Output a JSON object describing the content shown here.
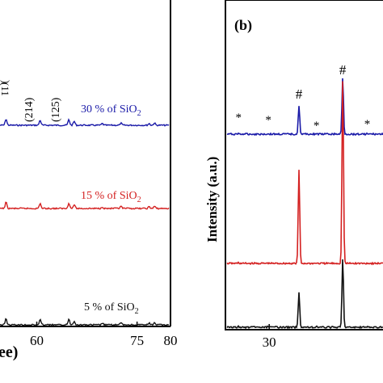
{
  "chart_data": [
    {
      "type": "line",
      "panel": "a",
      "xlabel": "ee)",
      "xticks": [
        "60",
        "75",
        "80"
      ],
      "xlim": [
        54.5,
        80
      ],
      "peak_labels": [
        "(11",
        ")",
        "(214)",
        "(125)"
      ],
      "series": [
        {
          "name": "30 % of SiO2",
          "color": "#1a1aa8",
          "offset": 2
        },
        {
          "name": "15 % of SiO2",
          "color": "#d42020",
          "offset": 1
        },
        {
          "name": "5 % of SiO2",
          "color": "#111111",
          "offset": 0
        }
      ],
      "peaks": [
        {
          "x": 55.4,
          "h": 0.55
        },
        {
          "x": 60.5,
          "h": 0.45
        },
        {
          "x": 64.8,
          "h": 0.5
        },
        {
          "x": 65.6,
          "h": 0.35
        },
        {
          "x": 69.8,
          "h": 0.15
        },
        {
          "x": 72.6,
          "h": 0.18
        },
        {
          "x": 76.8,
          "h": 0.15
        },
        {
          "x": 77.6,
          "h": 0.2
        }
      ]
    },
    {
      "type": "line",
      "panel": "b",
      "panel_label": "(b)",
      "ylabel": "Intensity (a.u.)",
      "xticks": [
        "30"
      ],
      "xlim": [
        25,
        43
      ],
      "markers": [
        {
          "symbol": "*",
          "x": 26.5
        },
        {
          "symbol": "*",
          "x": 29.9
        },
        {
          "symbol": "#",
          "x": 33.4
        },
        {
          "symbol": "*",
          "x": 35.4
        },
        {
          "symbol": "#",
          "x": 38.4
        },
        {
          "symbol": "*",
          "x": 41.2
        }
      ],
      "series": [
        {
          "color": "#1a1aa8",
          "offset": 2
        },
        {
          "color": "#d42020",
          "offset": 1
        },
        {
          "color": "#111111",
          "offset": 0
        }
      ],
      "peaks": [
        {
          "x": 26.5,
          "h": 0.1
        },
        {
          "x": 29.8,
          "h": 0.05
        },
        {
          "x": 33.4,
          "h": 0.7
        },
        {
          "x": 35.4,
          "h": 0.05
        },
        {
          "x": 38.4,
          "h": 1.0
        },
        {
          "x": 41.2,
          "h": 0.05
        }
      ]
    }
  ]
}
